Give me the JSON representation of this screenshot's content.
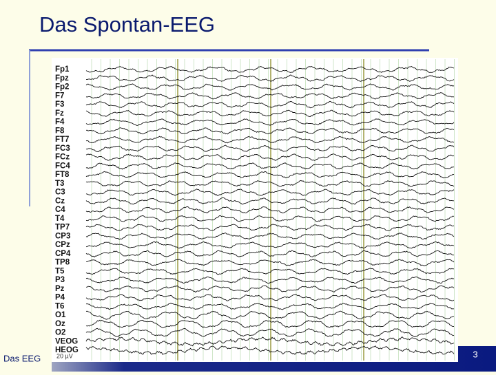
{
  "header": {
    "title": "Das Spontan-EEG"
  },
  "eeg": {
    "channels": [
      "Fp1",
      "Fpz",
      "Fp2",
      "F7",
      "F3",
      "Fz",
      "F4",
      "F8",
      "FT7",
      "FC3",
      "FCz",
      "FC4",
      "FT8",
      "T3",
      "C3",
      "Cz",
      "C4",
      "T4",
      "TP7",
      "CP3",
      "CPz",
      "CP4",
      "TP8",
      "T5",
      "P3",
      "Pz",
      "P4",
      "T6",
      "O1",
      "Oz",
      "O2",
      "VEOG",
      "HEOG"
    ],
    "scale_label": "20 µV"
  },
  "footer": {
    "section": "Das EEG",
    "page_number": 3
  }
}
